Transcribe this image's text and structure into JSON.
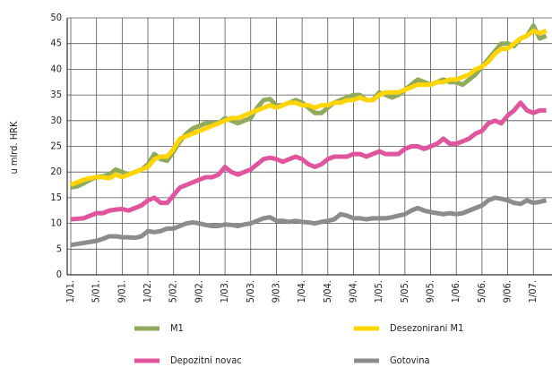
{
  "chart_data": {
    "type": "line",
    "y_label": "u mlrd. HRK",
    "categories": [
      "1/01.",
      null,
      null,
      null,
      "5/01.",
      null,
      null,
      null,
      "9/01.",
      null,
      null,
      null,
      "1/02.",
      null,
      null,
      null,
      "5/02.",
      null,
      null,
      null,
      "9/02.",
      null,
      null,
      null,
      "1/03.",
      null,
      null,
      null,
      "5/03.",
      null,
      null,
      null,
      "9/03.",
      null,
      null,
      null,
      "1/04.",
      null,
      null,
      null,
      "5/04.",
      null,
      null,
      null,
      "9/04.",
      null,
      null,
      null,
      "1/05.",
      null,
      null,
      null,
      "5/05.",
      null,
      null,
      null,
      "9/05.",
      null,
      null,
      null,
      "1/06.",
      null,
      null,
      null,
      "5/06.",
      null,
      null,
      null,
      "9/06.",
      null,
      null,
      null,
      "1/07.",
      null,
      null
    ],
    "series": [
      {
        "name": "M1",
        "color": "#8fa95d",
        "values": [
          17,
          17.2,
          17.8,
          18.5,
          19,
          19.2,
          19.5,
          20.5,
          20,
          19.5,
          20,
          20.5,
          21.5,
          23.5,
          22.5,
          22.2,
          24,
          26,
          27.5,
          28.5,
          29,
          29.5,
          29.5,
          29.5,
          30.5,
          30,
          29.5,
          30,
          30.5,
          32.5,
          34,
          34.2,
          33,
          33,
          33.5,
          34,
          33.5,
          32.5,
          31.5,
          31.5,
          32.5,
          33.5,
          34,
          34.5,
          35,
          35,
          34,
          34,
          35.5,
          35,
          34.5,
          35,
          36,
          37,
          38,
          37.5,
          37,
          37.5,
          38,
          37.5,
          37.5,
          37,
          38,
          39,
          40.5,
          42,
          43.5,
          45,
          45,
          44.5,
          46,
          46.5,
          48.5,
          46,
          46.5
        ]
      },
      {
        "name": "Desezonirani M1",
        "color": "#ffd500",
        "values": [
          17.5,
          18,
          18.5,
          18.8,
          19,
          19,
          18.8,
          19.5,
          19,
          19.5,
          20,
          20.5,
          21,
          22.5,
          23,
          23,
          24.5,
          26.5,
          27,
          27.5,
          28,
          28.5,
          29,
          29.5,
          30,
          30.5,
          30.5,
          31,
          31.5,
          32,
          32.5,
          33,
          32.5,
          33,
          33.5,
          33.5,
          33,
          33,
          32.5,
          33,
          33,
          33.5,
          33.5,
          34,
          34,
          34.5,
          34,
          34,
          35,
          35.5,
          35.5,
          35.5,
          36,
          36.5,
          37,
          37,
          37,
          37.5,
          37.5,
          38,
          38,
          38.5,
          39,
          40,
          40.5,
          41.5,
          43,
          44,
          44,
          45,
          46,
          46.5,
          47.5,
          47,
          47.5
        ]
      },
      {
        "name": "Depozitni novac",
        "color": "#e0559d",
        "values": [
          10.8,
          10.9,
          11,
          11.5,
          12,
          12,
          12.5,
          12.7,
          12.8,
          12.5,
          13,
          13.5,
          14.5,
          15,
          14,
          14,
          15.5,
          17,
          17.5,
          18,
          18.5,
          19,
          19,
          19.5,
          21,
          20,
          19.5,
          20,
          20.5,
          21.5,
          22.5,
          22.8,
          22.5,
          22,
          22.5,
          23,
          22.5,
          21.5,
          21,
          21.5,
          22.5,
          23,
          23,
          23,
          23.5,
          23.5,
          23,
          23.5,
          24,
          23.5,
          23.5,
          23.5,
          24.5,
          25,
          25,
          24.5,
          25,
          25.5,
          26.5,
          25.5,
          25.5,
          26,
          26.5,
          27.5,
          28,
          29.5,
          30,
          29.5,
          31,
          32,
          33.5,
          32,
          31.5,
          32,
          32
        ]
      },
      {
        "name": "Gotovina",
        "color": "#8c8c8f",
        "values": [
          5.8,
          6,
          6.2,
          6.4,
          6.6,
          7,
          7.5,
          7.5,
          7.3,
          7.3,
          7.2,
          7.5,
          8.5,
          8.3,
          8.5,
          9,
          9,
          9.5,
          10,
          10.2,
          10,
          9.7,
          9.5,
          9.5,
          9.8,
          9.7,
          9.5,
          9.8,
          10,
          10.5,
          11,
          11.2,
          10.5,
          10.5,
          10.3,
          10.5,
          10.3,
          10.2,
          10,
          10.3,
          10.5,
          10.8,
          11.8,
          11.5,
          11,
          11,
          10.8,
          11,
          11,
          11,
          11.2,
          11.5,
          11.8,
          12.5,
          13,
          12.5,
          12.2,
          12,
          11.8,
          12,
          11.8,
          12,
          12.5,
          13,
          13.5,
          14.5,
          15,
          14.8,
          14.5,
          14,
          13.8,
          14.5,
          14,
          14.2,
          14.5
        ]
      }
    ],
    "ylim": [
      0,
      50
    ],
    "yticks": [
      0,
      5,
      10,
      15,
      20,
      25,
      30,
      35,
      40,
      45,
      50
    ],
    "grid": true
  }
}
